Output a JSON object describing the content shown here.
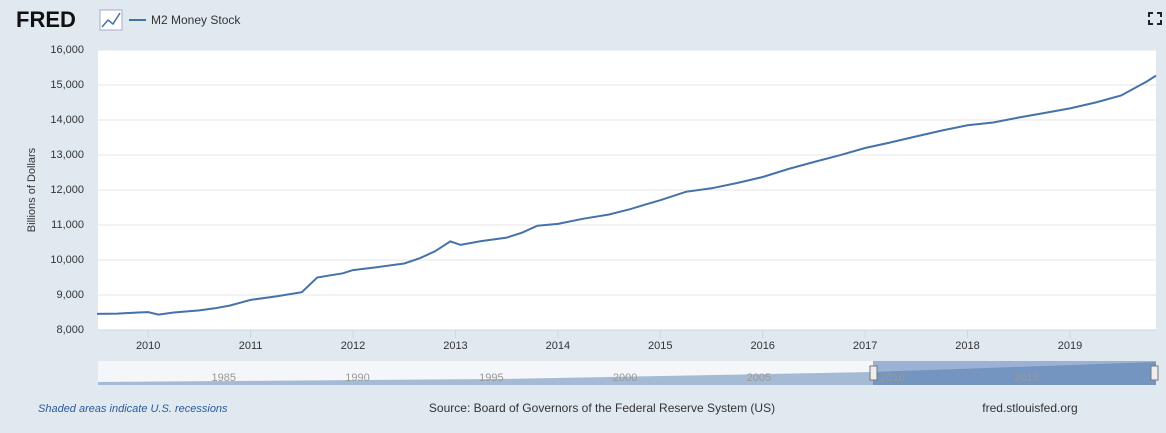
{
  "brand": "FRED",
  "chart_data": {
    "type": "line",
    "series": [
      {
        "name": "M2 Money Stock",
        "color": "#4572a7",
        "values": [
          8460,
          8470,
          8500,
          8510,
          8440,
          8500,
          8560,
          8620,
          8700,
          8780,
          8860,
          8960,
          9080,
          9500,
          9550,
          9620,
          9710,
          9800,
          9900,
          10050,
          10250,
          10530,
          10430,
          10540,
          10640,
          10780,
          10980,
          11030,
          11180,
          11300,
          11450,
          11580,
          11710,
          11950,
          12050,
          12200,
          12370,
          12600,
          12800,
          12990,
          13200,
          13360,
          13530,
          13700,
          13850,
          13930,
          14070,
          14200,
          14330,
          14500,
          14700,
          15100,
          15270
        ]
      }
    ],
    "x": [
      2009.5,
      2009.7,
      2009.9,
      2010.0,
      2010.1,
      2010.25,
      2010.5,
      2010.65,
      2010.8,
      2010.9,
      2011.0,
      2011.25,
      2011.5,
      2011.65,
      2011.75,
      2011.9,
      2012.0,
      2012.25,
      2012.5,
      2012.65,
      2012.8,
      2012.95,
      2013.05,
      2013.25,
      2013.5,
      2013.65,
      2013.8,
      2014.0,
      2014.25,
      2014.5,
      2014.7,
      2014.85,
      2015.0,
      2015.25,
      2015.5,
      2015.75,
      2016.0,
      2016.25,
      2016.5,
      2016.75,
      2017.0,
      2017.25,
      2017.5,
      2017.75,
      2018.0,
      2018.25,
      2018.5,
      2018.75,
      2019.0,
      2019.25,
      2019.5,
      2019.75,
      2019.84
    ],
    "xlim": [
      2009.51,
      2019.84
    ],
    "xticks": [
      2010,
      2011,
      2012,
      2013,
      2014,
      2015,
      2016,
      2017,
      2018,
      2019
    ],
    "ylim": [
      8000,
      16000
    ],
    "yticks": [
      {
        "value": 8000,
        "label": "8,000"
      },
      {
        "value": 9000,
        "label": "9,000"
      },
      {
        "value": 10000,
        "label": "10,000"
      },
      {
        "value": 11000,
        "label": "11,000"
      },
      {
        "value": 12000,
        "label": "12,000"
      },
      {
        "value": 13000,
        "label": "13,000"
      },
      {
        "value": 14000,
        "label": "14,000"
      },
      {
        "value": 15000,
        "label": "15,000"
      },
      {
        "value": 16000,
        "label": "16,000"
      }
    ],
    "y_label": "Billions of Dollars",
    "grid": true
  },
  "navigator": {
    "xlim": [
      1980.3,
      2019.84
    ],
    "ticks": [
      1985,
      1990,
      1995,
      2000,
      2005,
      2010,
      2015
    ]
  },
  "footer": {
    "note": "Shaded areas indicate U.S. recessions",
    "source": "Source: Board of Governors of the Federal Reserve System (US)",
    "site": "fred.stlouisfed.org"
  }
}
